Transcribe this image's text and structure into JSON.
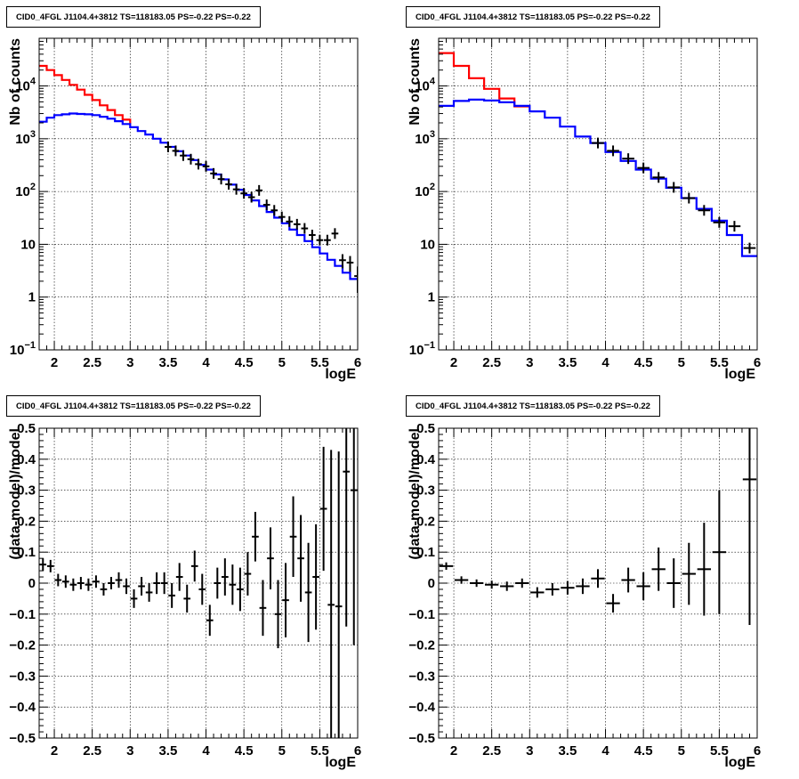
{
  "chart_data": [
    {
      "id": "counts-left",
      "type": "line",
      "title": "CID0_4FGL J1104.4+3812 TS=118183.05 PS=-0.22 PS=-0.22",
      "xlabel": "logE",
      "ylabel": "Nb of counts",
      "yscale": "log",
      "xlim": [
        1.8,
        6.0
      ],
      "ylim": [
        0.1,
        80000
      ],
      "xticks": [
        "2",
        "2.5",
        "3",
        "3.5",
        "4",
        "4.5",
        "5",
        "5.5",
        "6"
      ],
      "yticks": [
        "10^-1",
        "1",
        "10",
        "10^2",
        "10^3",
        "10^4"
      ],
      "grid": true,
      "series": [
        {
          "color": "#ff0000",
          "style": "step",
          "edges": [
            1.8,
            1.9,
            2.0,
            2.1,
            2.2,
            2.3,
            2.4,
            2.5,
            2.6,
            2.7,
            2.8,
            2.9,
            3.0
          ],
          "values": [
            24000,
            20000,
            16000,
            13000,
            10500,
            8500,
            6800,
            5400,
            4300,
            3500,
            2800,
            2300,
            1900
          ]
        },
        {
          "color": "#0000ff",
          "style": "step",
          "edges": [
            1.8,
            1.9,
            2.0,
            2.1,
            2.2,
            2.3,
            2.4,
            2.5,
            2.6,
            2.7,
            2.8,
            2.9,
            3.0,
            3.1,
            3.2,
            3.3,
            3.4,
            3.5,
            3.6,
            3.7,
            3.8,
            3.9,
            4.0,
            4.1,
            4.2,
            4.3,
            4.4,
            4.5,
            4.6,
            4.7,
            4.8,
            4.9,
            5.0,
            5.1,
            5.2,
            5.3,
            5.4,
            5.5,
            5.6,
            5.7,
            5.8,
            5.9,
            6.0
          ],
          "values": [
            2100,
            2500,
            2800,
            2900,
            3000,
            2950,
            2900,
            2800,
            2600,
            2400,
            2150,
            1900,
            1650,
            1400,
            1200,
            1000,
            840,
            700,
            580,
            480,
            395,
            320,
            260,
            210,
            170,
            135,
            108,
            86,
            68,
            53,
            41,
            32,
            25,
            19,
            15,
            11.5,
            8.8,
            6.7,
            5.1,
            3.9,
            2.9,
            2.2
          ]
        }
      ],
      "points": {
        "x": [
          3.5,
          3.6,
          3.7,
          3.8,
          3.9,
          4.0,
          4.1,
          4.2,
          4.3,
          4.4,
          4.5,
          4.6,
          4.7,
          4.8,
          4.9,
          5.0,
          5.1,
          5.2,
          5.3,
          5.4,
          5.5,
          5.6,
          5.7,
          5.8,
          5.9,
          6.0
        ],
        "y": [
          700,
          590,
          480,
          410,
          330,
          300,
          220,
          172,
          137,
          110,
          92,
          78,
          105,
          56,
          44,
          33,
          27,
          24,
          20,
          15,
          12,
          12,
          16,
          5,
          4.5,
          2.5
        ],
        "err": [
          0,
          0,
          0,
          0,
          0,
          0,
          0,
          0,
          0,
          0,
          0,
          0,
          0,
          0,
          0,
          0,
          0,
          0,
          0,
          0,
          0,
          0,
          0,
          1.5,
          1.5,
          1.3
        ]
      }
    },
    {
      "id": "counts-right",
      "type": "line",
      "title": "CID0_4FGL J1104.4+3812 TS=118183.05 PS=-0.22 PS=-0.22",
      "xlabel": "logE",
      "ylabel": "Nb of counts",
      "yscale": "log",
      "xlim": [
        1.8,
        6.0
      ],
      "ylim": [
        0.1,
        80000
      ],
      "xticks": [
        "2",
        "2.5",
        "3",
        "3.5",
        "4",
        "4.5",
        "5",
        "5.5",
        "6"
      ],
      "yticks": [
        "10^-1",
        "1",
        "10",
        "10^2",
        "10^3",
        "10^4"
      ],
      "grid": true,
      "series": [
        {
          "color": "#ff0000",
          "style": "step",
          "edges": [
            1.8,
            2.0,
            2.2,
            2.4,
            2.6,
            2.8,
            3.0
          ],
          "values": [
            42000,
            24000,
            14000,
            8800,
            5800,
            4100
          ]
        },
        {
          "color": "#0000ff",
          "style": "step",
          "edges": [
            1.8,
            2.0,
            2.2,
            2.4,
            2.6,
            2.8,
            3.0,
            3.2,
            3.4,
            3.6,
            3.8,
            4.0,
            4.2,
            4.4,
            4.6,
            4.8,
            5.0,
            5.2,
            5.4,
            5.6,
            5.8,
            6.0
          ],
          "values": [
            4200,
            5200,
            5500,
            5300,
            4900,
            4200,
            3300,
            2500,
            1700,
            1100,
            830,
            560,
            380,
            260,
            175,
            118,
            75,
            47,
            28,
            15,
            6
          ]
        }
      ],
      "points": {
        "x": [
          3.9,
          4.1,
          4.3,
          4.5,
          4.7,
          4.9,
          5.1,
          5.3,
          5.5,
          5.7,
          5.9
        ],
        "y": [
          830,
          590,
          420,
          280,
          185,
          120,
          75,
          44,
          26,
          22,
          8.5
        ],
        "err": [
          0,
          0,
          0,
          0,
          0,
          0,
          0,
          0,
          0,
          0,
          0
        ]
      }
    },
    {
      "id": "residual-left",
      "type": "scatter",
      "title": "CID0_4FGL J1104.4+3812 TS=118183.05 PS=-0.22 PS=-0.22",
      "xlabel": "logE",
      "ylabel": "(data-model)/model",
      "xlim": [
        1.8,
        6.0
      ],
      "ylim": [
        -0.5,
        0.5
      ],
      "xticks": [
        "2",
        "2.5",
        "3",
        "3.5",
        "4",
        "4.5",
        "5",
        "5.5",
        "6"
      ],
      "yticks": [
        "-0.5",
        "-0.4",
        "-0.3",
        "-0.2",
        "-0.1",
        "0",
        "0.1",
        "0.2",
        "0.3",
        "0.4",
        "0.5"
      ],
      "grid": true,
      "points": {
        "x": [
          1.85,
          1.95,
          2.05,
          2.15,
          2.25,
          2.35,
          2.45,
          2.55,
          2.65,
          2.75,
          2.85,
          2.95,
          3.05,
          3.15,
          3.25,
          3.35,
          3.45,
          3.55,
          3.65,
          3.75,
          3.85,
          3.95,
          4.05,
          4.15,
          4.25,
          4.35,
          4.45,
          4.55,
          4.65,
          4.75,
          4.85,
          4.95,
          5.05,
          5.15,
          5.25,
          5.35,
          5.45,
          5.55,
          5.65,
          5.75,
          5.85,
          5.95
        ],
        "y": [
          0.06,
          0.055,
          0.01,
          0.005,
          -0.005,
          0,
          -0.005,
          0.005,
          -0.02,
          0,
          0.01,
          -0.01,
          -0.05,
          -0.01,
          -0.03,
          0,
          0,
          -0.04,
          0.02,
          -0.05,
          0.055,
          -0.02,
          -0.12,
          0,
          0.02,
          -0.005,
          -0.02,
          0.03,
          0.15,
          -0.08,
          0.08,
          -0.1,
          -0.055,
          0.15,
          0.08,
          -0.03,
          0.02,
          0.24,
          -0.07,
          -0.075,
          0.36,
          0.3
        ],
        "err": [
          0.02,
          0.02,
          0.02,
          0.02,
          0.02,
          0.02,
          0.02,
          0.02,
          0.02,
          0.02,
          0.025,
          0.025,
          0.03,
          0.03,
          0.03,
          0.035,
          0.035,
          0.04,
          0.045,
          0.045,
          0.05,
          0.05,
          0.05,
          0.05,
          0.06,
          0.065,
          0.07,
          0.07,
          0.08,
          0.09,
          0.1,
          0.11,
          0.12,
          0.13,
          0.14,
          0.16,
          0.17,
          0.2,
          0.5,
          0.5,
          0.5,
          0.5
        ]
      }
    },
    {
      "id": "residual-right",
      "type": "scatter",
      "title": "CID0_4FGL J1104.4+3812 TS=118183.05 PS=-0.22 PS=-0.22",
      "xlabel": "logE",
      "ylabel": "(data-model)/model",
      "xlim": [
        1.8,
        6.0
      ],
      "ylim": [
        -0.5,
        0.5
      ],
      "xticks": [
        "2",
        "2.5",
        "3",
        "3.5",
        "4",
        "4.5",
        "5",
        "5.5",
        "6"
      ],
      "yticks": [
        "-0.5",
        "-0.4",
        "-0.3",
        "-0.2",
        "-0.1",
        "0",
        "0.1",
        "0.2",
        "0.3",
        "0.4",
        "0.5"
      ],
      "grid": true,
      "points": {
        "x": [
          1.9,
          2.1,
          2.3,
          2.5,
          2.7,
          2.9,
          3.1,
          3.3,
          3.5,
          3.7,
          3.9,
          4.1,
          4.3,
          4.5,
          4.7,
          4.9,
          5.1,
          5.3,
          5.5,
          5.9
        ],
        "y": [
          0.055,
          0.01,
          0,
          -0.005,
          -0.01,
          0,
          -0.03,
          -0.02,
          -0.015,
          -0.01,
          0.015,
          -0.065,
          0.01,
          -0.01,
          0.045,
          0,
          0.03,
          0.045,
          0.1,
          0.335
        ],
        "err": [
          0.012,
          0.012,
          0.012,
          0.013,
          0.015,
          0.015,
          0.017,
          0.02,
          0.022,
          0.025,
          0.03,
          0.03,
          0.04,
          0.045,
          0.07,
          0.08,
          0.1,
          0.15,
          0.2,
          0.47
        ]
      }
    }
  ]
}
